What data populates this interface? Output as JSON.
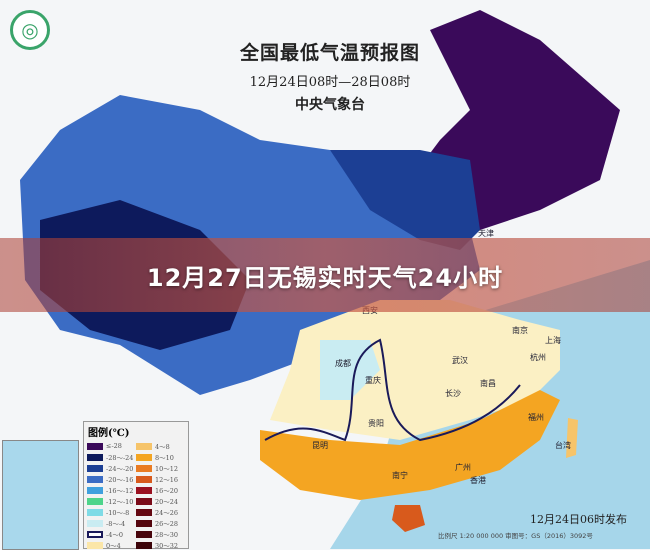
{
  "map": {
    "title": "全国最低气温预报图",
    "period": "12月24日08时—28日08时",
    "agency": "中央气象台",
    "published": "12月24日06时发布",
    "scale_text": "比例尺 1:20 000 000    审图号：GS（2016）3092号"
  },
  "banner": {
    "headline": "12月27日无锡实时天气24小时"
  },
  "legend": {
    "title": "图例(℃)",
    "items": [
      {
        "label": "≤-28",
        "color": "#3a0a5a"
      },
      {
        "label": "-28～-24",
        "color": "#0d1a5c"
      },
      {
        "label": "-24～-20",
        "color": "#1c3f94"
      },
      {
        "label": "-20～-16",
        "color": "#3b6cc4"
      },
      {
        "label": "-16～-12",
        "color": "#3fa0de"
      },
      {
        "label": "-12～-10",
        "color": "#4ed48a"
      },
      {
        "label": "-10～-8",
        "color": "#7fdbe6"
      },
      {
        "label": "-8～-4",
        "color": "#c9ecf2"
      },
      {
        "label": "-4～0",
        "color": "#ffffff",
        "border": "#1a1a5a"
      },
      {
        "label": "0～4",
        "color": "#fbe6a8"
      },
      {
        "label": "4～8",
        "color": "#f6c46a"
      },
      {
        "label": "8～10",
        "color": "#f4a522"
      },
      {
        "label": "10～12",
        "color": "#e97b22"
      },
      {
        "label": "12～16",
        "color": "#d85a1c"
      },
      {
        "label": "16～20",
        "color": "#9a1020"
      },
      {
        "label": "20～24",
        "color": "#7a0a18"
      },
      {
        "label": "24～26",
        "color": "#650812"
      },
      {
        "label": "26～28",
        "color": "#55060e"
      },
      {
        "label": "28～30",
        "color": "#48050c"
      },
      {
        "label": "30～32",
        "color": "#3c040a"
      }
    ]
  },
  "cities": [
    "西安",
    "武汉",
    "南京",
    "上海",
    "杭州",
    "南昌",
    "长沙",
    "重庆",
    "成都",
    "贵阳",
    "昆明",
    "南宁",
    "广州",
    "香港",
    "福州",
    "台湾",
    "天津"
  ]
}
